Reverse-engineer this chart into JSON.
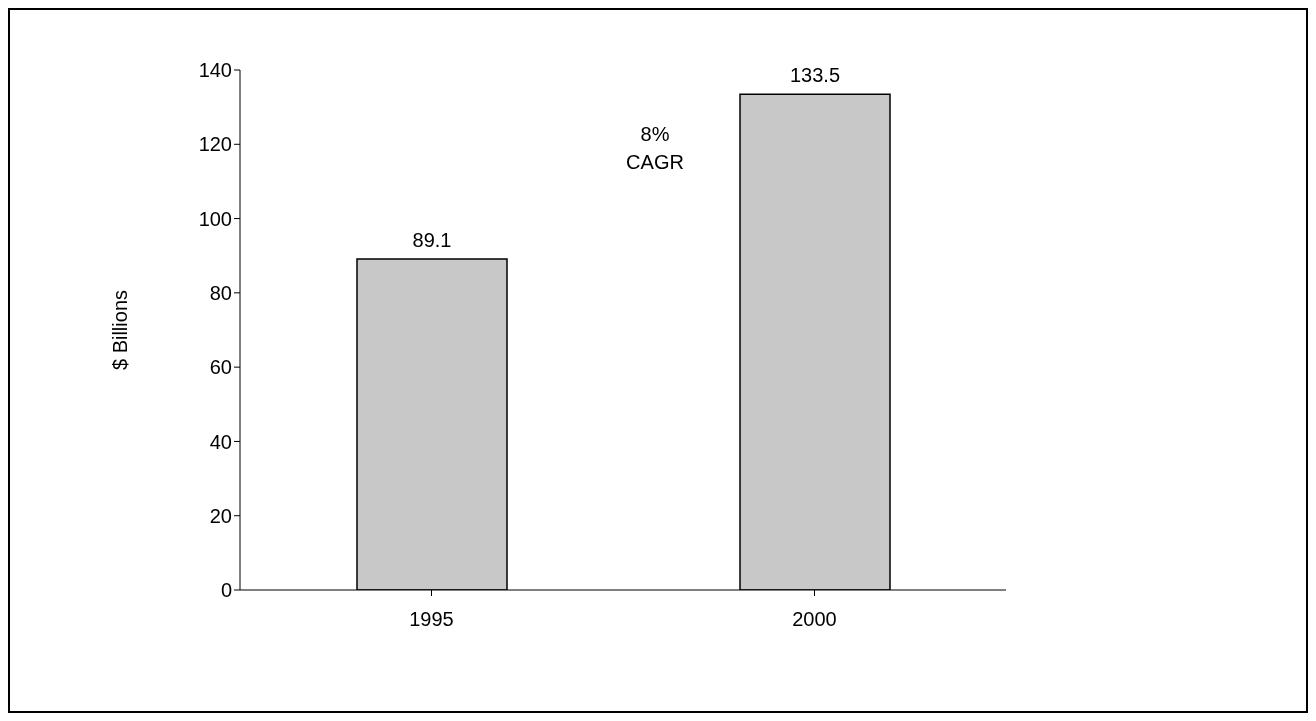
{
  "chart_data": {
    "type": "bar",
    "ylabel": "$ Billions",
    "categories": [
      "1995",
      "2000"
    ],
    "values": [
      89.1,
      133.5
    ],
    "color": "#c8c8c8",
    "ylim": [
      0,
      140
    ],
    "yticks": [
      0,
      20,
      40,
      60,
      80,
      100,
      120,
      140
    ],
    "data_labels": true,
    "annotations": [
      "8% CAGR"
    ]
  }
}
